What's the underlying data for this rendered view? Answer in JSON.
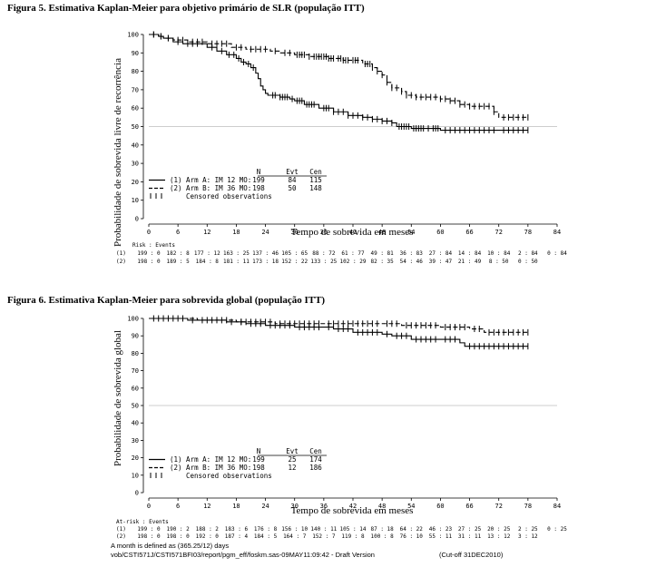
{
  "charts": [
    {
      "title": "Figura 5. Estimativa Kaplan-Meier para objetivo primário de SLR (população ITT)",
      "ylabel": "Probabilidade de sobrevida livre de recorrência",
      "xlabel": "Tempo de sobrevida em meses",
      "legend": {
        "header": [
          "N",
          "Evt",
          "Cen"
        ],
        "rows": [
          {
            "label": "(1) Arm A: IM 12 MO:",
            "n": "199",
            "evt": "84",
            "cen": "115"
          },
          {
            "label": "(2) Arm B: IM 36 MO:",
            "n": "198",
            "evt": "50",
            "cen": "148"
          }
        ],
        "censored_label": "Censored observations"
      },
      "risk": {
        "header": "Risk : Events",
        "rows": [
          {
            "label": "(1)",
            "values": [
              "199 : 0",
              "182 : 8",
              "177 : 12",
              "163 : 25",
              "137 : 46",
              "105 : 65",
              "88 : 72",
              "61 : 77",
              "49 : 81",
              "36 : 83",
              "27 : 84",
              "14 : 84",
              "10 : 84",
              "2 : 84",
              "0 : 84"
            ]
          },
          {
            "label": "(2)",
            "values": [
              "198 : 0",
              "189 : 5",
              "184 : 8",
              "181 : 11",
              "173 : 18",
              "152 : 22",
              "133 : 25",
              "102 : 29",
              "82 : 35",
              "54 : 46",
              "39 : 47",
              "21 : 49",
              "8 : 50",
              "0 : 50",
              ""
            ]
          }
        ]
      }
    },
    {
      "title": "Figura 6. Estimativa Kaplan-Meier para sobrevida global (população ITT)",
      "ylabel": "Probabilidade de sobrevida global",
      "xlabel": "Tempo de sobrevida em meses",
      "legend": {
        "header": [
          "N",
          "Evt",
          "Cen"
        ],
        "rows": [
          {
            "label": "(1) Arm A: IM 12 MO:",
            "n": "199",
            "evt": "25",
            "cen": "174"
          },
          {
            "label": "(2) Arm B: IM 36 MO:",
            "n": "198",
            "evt": "12",
            "cen": "186"
          }
        ],
        "censored_label": "Censored observations"
      },
      "risk": {
        "header": "At-risk : Events",
        "rows": [
          {
            "label": "(1)",
            "values": [
              "199 : 0",
              "190 : 2",
              "188 : 2",
              "183 : 6",
              "176 : 8",
              "156 : 10",
              "140 : 11",
              "105 : 14",
              "87 : 18",
              "64 : 22",
              "46 : 23",
              "27 : 25",
              "20 : 25",
              "2 : 25",
              "0 : 25"
            ]
          },
          {
            "label": "(2)",
            "values": [
              "198 : 0",
              "198 : 0",
              "192 : 0",
              "187 : 4",
              "184 : 5",
              "164 : 7",
              "152 : 7",
              "119 : 8",
              "100 : 8",
              "76 : 10",
              "55 : 11",
              "31 : 11",
              "13 : 12",
              "3 : 12",
              ""
            ]
          }
        ]
      }
    }
  ],
  "footer": {
    "line1": "A month is defined as (365.25/12) days",
    "line2": "vob/CSTI571J/CSTI571BFI03/report/pgm_eff/foskm.sas-09MAY11:09:42 - Draft Version",
    "cutoff": "(Cut-off 31DEC2010)"
  },
  "chart_data": [
    {
      "type": "line",
      "title": "Figura 5. Estimativa Kaplan-Meier para objetivo primário de SLR (população ITT)",
      "xlabel": "Tempo de sobrevida em meses",
      "ylabel": "Probabilidade de sobrevida livre de recorrência",
      "xlim": [
        0,
        84
      ],
      "ylim": [
        0,
        100
      ],
      "xticks": [
        0,
        6,
        12,
        18,
        24,
        30,
        36,
        42,
        48,
        54,
        60,
        66,
        72,
        78,
        84
      ],
      "yticks": [
        0,
        10,
        20,
        30,
        40,
        50,
        60,
        70,
        80,
        90,
        100
      ],
      "reference_line": 50,
      "series": [
        {
          "name": "(1) Arm A: IM 12 MO",
          "style": "solid",
          "x": [
            0,
            2,
            3,
            5,
            7,
            12,
            14,
            16,
            18,
            19,
            20,
            21,
            22,
            22.5,
            23,
            23.5,
            24,
            24.5,
            25,
            27,
            29,
            30,
            32,
            35,
            38,
            41,
            44,
            46,
            48,
            50,
            51,
            54,
            60,
            64,
            66,
            78
          ],
          "y": [
            100,
            99,
            98,
            96,
            95,
            93,
            91,
            89,
            87,
            85,
            84,
            82,
            79,
            76,
            72,
            70,
            68,
            67,
            67,
            66,
            65,
            64,
            62,
            60,
            58,
            56,
            55,
            54,
            53,
            52,
            50,
            49,
            48,
            48,
            48,
            48
          ],
          "censor_x": [
            1,
            2.5,
            4,
            6,
            8,
            9,
            10,
            13,
            15,
            16.5,
            17.5,
            18.5,
            19.5,
            20.5,
            21.5,
            25.5,
            26,
            27,
            27.5,
            28,
            28.5,
            29.5,
            30.5,
            31,
            31.5,
            32.5,
            33,
            33.5,
            34,
            36,
            36.5,
            37,
            38,
            39,
            40,
            41,
            42,
            43,
            44,
            45,
            46,
            47,
            48,
            49,
            50,
            51.5,
            52,
            52.5,
            53,
            53.5,
            54.5,
            55,
            55.5,
            56,
            56.5,
            57.5,
            58.5,
            59,
            59.5,
            61,
            62,
            63,
            64,
            65,
            66,
            67,
            68,
            69,
            70,
            71,
            73,
            74,
            75,
            76,
            77,
            78
          ]
        },
        {
          "name": "(2) Arm B: IM 36 MO",
          "style": "dashed",
          "x": [
            0,
            2,
            3,
            5,
            8,
            12,
            17,
            20,
            25,
            27,
            30,
            33,
            37,
            40,
            44,
            46,
            47,
            48,
            49,
            50,
            52,
            53,
            55,
            60,
            62,
            64,
            66,
            71,
            72,
            78
          ],
          "y": [
            100,
            99,
            98,
            97,
            96,
            95,
            93,
            92,
            91,
            90,
            89,
            88,
            87,
            86,
            84,
            82,
            80,
            78,
            74,
            71,
            69,
            67,
            66,
            65,
            64,
            62,
            61,
            58,
            55,
            55
          ],
          "censor_x": [
            1,
            2.5,
            4,
            6,
            7,
            9,
            10,
            11,
            13,
            14,
            15,
            16,
            18,
            19,
            21,
            22,
            23,
            24,
            26,
            28,
            29,
            30.5,
            31,
            31.5,
            32,
            33,
            34,
            34.5,
            35,
            35.5,
            36,
            36.5,
            37,
            37.5,
            38,
            39,
            39.5,
            40,
            40.5,
            41,
            42,
            42.5,
            43,
            44.5,
            45,
            45.5,
            46,
            47,
            48,
            49,
            50,
            51,
            52,
            53,
            54,
            55,
            56,
            57,
            58,
            59,
            60,
            61,
            62,
            63,
            64,
            65,
            66,
            67,
            68,
            69,
            70,
            71,
            73,
            74,
            75,
            76,
            77,
            78
          ]
        }
      ]
    },
    {
      "type": "line",
      "title": "Figura 6. Estimativa Kaplan-Meier para sobrevida global (população ITT)",
      "xlabel": "Tempo de sobrevida em meses",
      "ylabel": "Probabilidade de sobrevida global",
      "xlim": [
        0,
        84
      ],
      "ylim": [
        0,
        100
      ],
      "xticks": [
        0,
        6,
        12,
        18,
        24,
        30,
        36,
        42,
        48,
        54,
        60,
        66,
        72,
        78,
        84
      ],
      "yticks": [
        0,
        10,
        20,
        30,
        40,
        50,
        60,
        70,
        80,
        90,
        100
      ],
      "reference_line": 50,
      "series": [
        {
          "name": "(1) Arm A: IM 12 MO",
          "style": "solid",
          "x": [
            0,
            8,
            16,
            20,
            24,
            30,
            36,
            38,
            42,
            48,
            50,
            54,
            60,
            64,
            65,
            78
          ],
          "y": [
            100,
            99,
            98,
            97,
            96,
            95,
            95,
            94,
            92,
            91,
            90,
            88,
            88,
            86,
            84,
            84
          ],
          "censor_x": [
            2,
            5,
            9,
            11,
            13,
            15,
            17,
            19,
            21,
            22,
            23,
            25,
            26,
            27,
            28,
            29,
            31,
            32,
            33,
            34,
            35,
            37,
            39,
            40,
            41,
            43,
            44,
            45,
            46,
            47,
            49,
            51,
            52,
            53,
            55,
            56,
            57,
            58,
            59,
            61,
            62,
            63,
            66,
            67,
            68,
            69,
            70,
            71,
            72,
            73,
            74,
            75,
            76,
            77,
            78
          ]
        },
        {
          "name": "(2) Arm B: IM 36 MO",
          "style": "dashed",
          "x": [
            0,
            10,
            18,
            26,
            36,
            48,
            52,
            60,
            66,
            69,
            78
          ],
          "y": [
            100,
            99,
            98,
            97,
            97,
            97,
            96,
            95,
            94,
            92,
            92
          ],
          "censor_x": [
            1,
            3,
            4,
            6,
            7,
            12,
            14,
            16,
            19,
            20,
            21,
            22,
            23,
            24,
            25,
            27,
            28,
            29,
            30,
            31,
            32,
            33,
            34,
            35,
            37,
            38,
            39,
            40,
            41,
            42,
            43,
            44,
            45,
            46,
            47,
            49,
            50,
            51,
            53,
            54,
            55,
            56,
            57,
            58,
            59,
            61,
            62,
            63,
            64,
            65,
            67,
            68,
            70,
            71,
            72,
            73,
            74,
            75,
            76,
            77,
            78
          ]
        }
      ]
    }
  ]
}
